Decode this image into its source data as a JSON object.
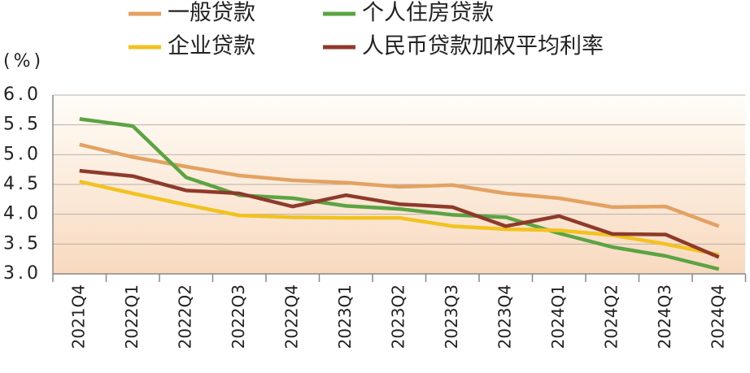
{
  "chart_data": {
    "type": "line",
    "y_label": "(%)",
    "categories": [
      "2021Q4",
      "2022Q1",
      "2022Q2",
      "2022Q3",
      "2022Q4",
      "2023Q1",
      "2023Q2",
      "2023Q3",
      "2023Q4",
      "2024Q1",
      "2024Q2",
      "2024Q3",
      "2024Q4"
    ],
    "series": [
      {
        "name": "一般贷款",
        "color": "#e3a262",
        "values": [
          5.17,
          4.96,
          4.8,
          4.65,
          4.57,
          4.53,
          4.46,
          4.49,
          4.35,
          4.27,
          4.12,
          4.13,
          3.8
        ]
      },
      {
        "name": "个人住房贷款",
        "color": "#5ba443",
        "values": [
          5.6,
          5.48,
          4.62,
          4.32,
          4.27,
          4.14,
          4.09,
          3.99,
          3.95,
          3.68,
          3.45,
          3.3,
          3.08
        ]
      },
      {
        "name": "企业贷款",
        "color": "#f2c21f",
        "values": [
          4.55,
          4.35,
          4.16,
          3.98,
          3.95,
          3.94,
          3.94,
          3.8,
          3.75,
          3.73,
          3.65,
          3.5,
          3.32
        ]
      },
      {
        "name": "人民币贷款加权平均利率",
        "color": "#8e3a2b",
        "values": [
          4.73,
          4.64,
          4.4,
          4.35,
          4.13,
          4.32,
          4.17,
          4.12,
          3.8,
          3.97,
          3.67,
          3.66,
          3.28
        ]
      }
    ],
    "ylim": [
      3.0,
      6.0
    ],
    "yticks": [
      {
        "value": 3.0,
        "label": "3.0"
      },
      3.5,
      {
        "value": 4.0,
        "label": "4.0"
      },
      4.5,
      {
        "value": 5.0,
        "label": "5.0"
      },
      5.5,
      {
        "value": 6.0,
        "label": "6.0"
      }
    ],
    "grid": true
  }
}
